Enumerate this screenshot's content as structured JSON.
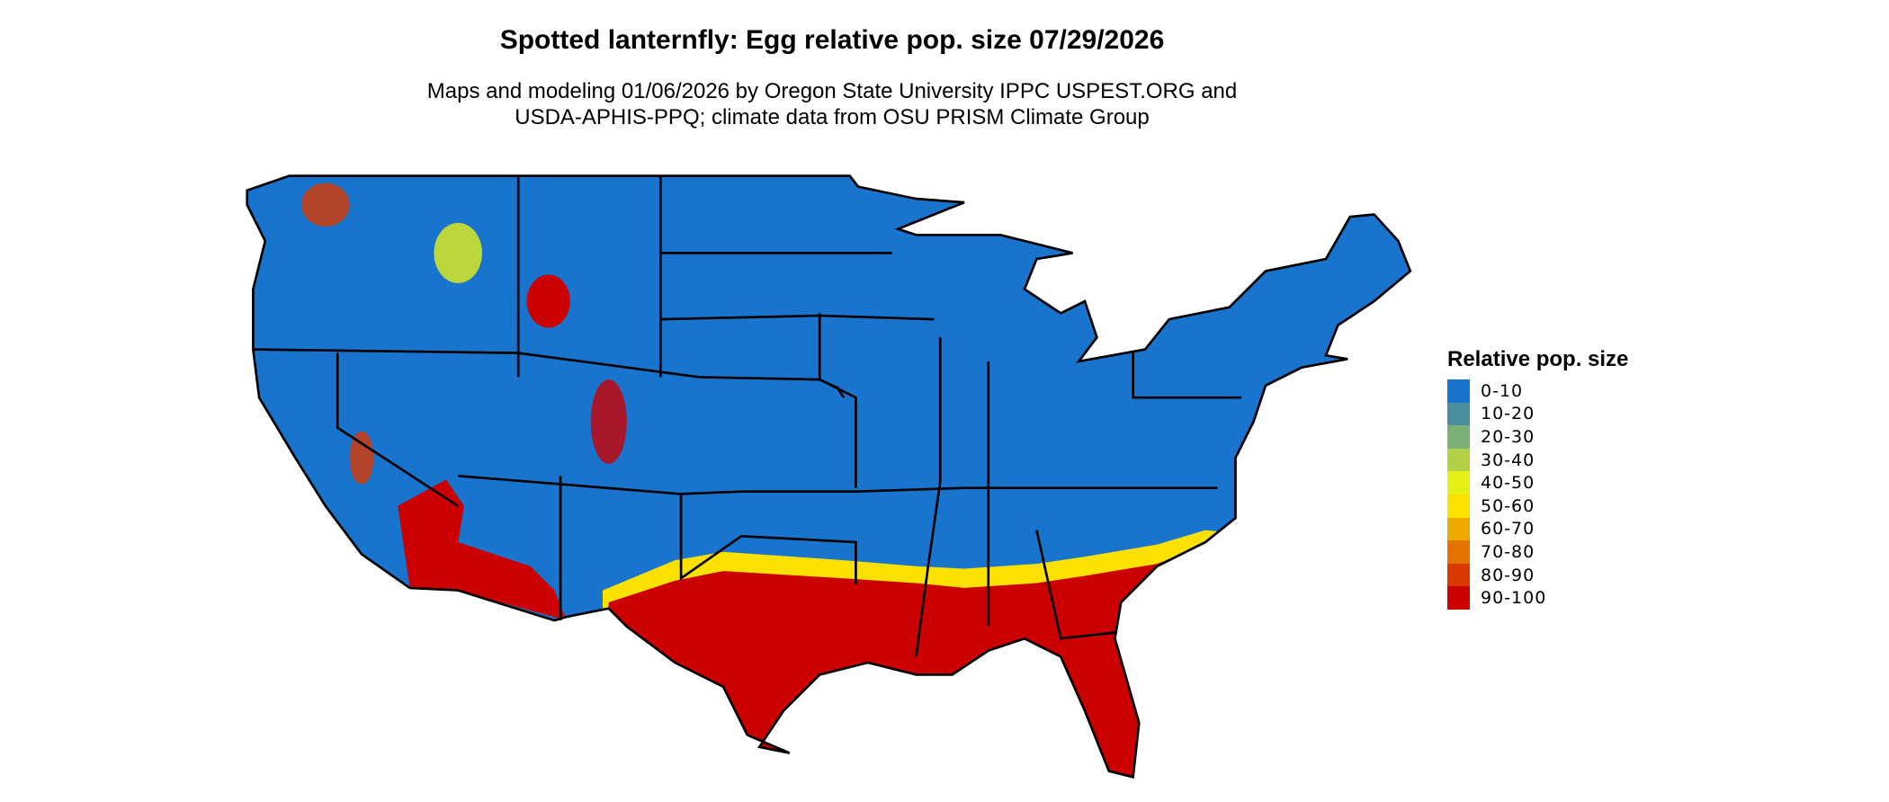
{
  "chart_data": {
    "type": "heatmap",
    "title": "Spotted lanternfly: Egg relative pop. size 07/29/2026",
    "subtitle": [
      "Maps and modeling 01/06/2026 by Oregon State University IPPC USPEST.ORG and",
      "USDA-APHIS-PPQ; climate data from OSU PRISM Climate Group"
    ],
    "legend": {
      "title": "Relative pop. size",
      "placement": "right",
      "bins": [
        {
          "label": "0-10",
          "color": "#1874cd"
        },
        {
          "label": "10-20",
          "color": "#4a8f9e"
        },
        {
          "label": "20-30",
          "color": "#7db076"
        },
        {
          "label": "30-40",
          "color": "#b3d046"
        },
        {
          "label": "40-50",
          "color": "#e6f016"
        },
        {
          "label": "50-60",
          "color": "#fae100"
        },
        {
          "label": "60-70",
          "color": "#eeaa00"
        },
        {
          "label": "70-80",
          "color": "#e37200"
        },
        {
          "label": "80-90",
          "color": "#db3800"
        },
        {
          "label": "90-100",
          "color": "#cc0000"
        }
      ]
    },
    "region": "Conterminous United States",
    "pattern": "90-100 across Gulf Coast states, Florida and southern Arizona/California deserts; 0-10 across most of the rest of the country with scattered high values in western mountains"
  }
}
